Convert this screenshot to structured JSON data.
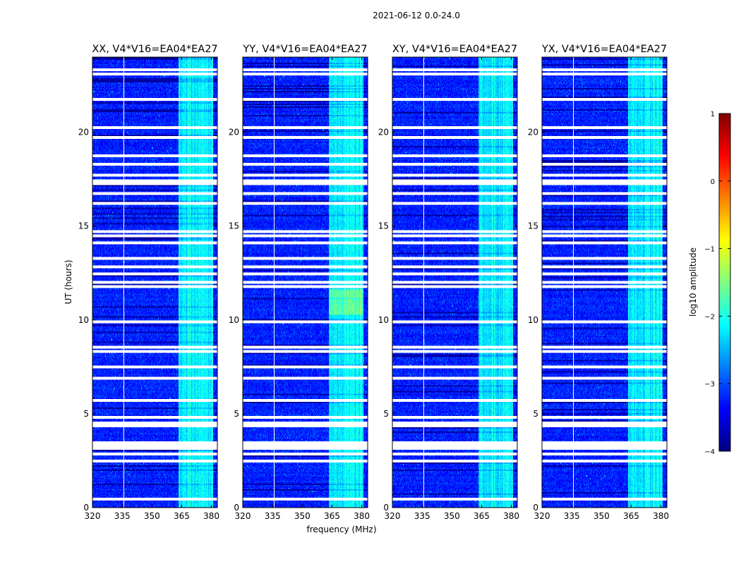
{
  "chart_data": {
    "type": "heatmap",
    "suptitle": "2021-06-12 0.0-24.0",
    "xlabel": "frequency (MHz)",
    "ylabel": "UT (hours)",
    "xlim": [
      320,
      383
    ],
    "ylim": [
      0,
      24
    ],
    "xticks": [
      320,
      335,
      350,
      365,
      380
    ],
    "yticks": [
      0,
      5,
      10,
      15,
      20
    ],
    "panels": [
      {
        "title": "XX, V4*V16=EA04*EA27"
      },
      {
        "title": "YY, V4*V16=EA04*EA27"
      },
      {
        "title": "XY, V4*V16=EA04*EA27"
      },
      {
        "title": "YX, V4*V16=EA04*EA27"
      }
    ],
    "colorbar": {
      "label": "log10 amplitude",
      "range": [
        -4,
        1
      ],
      "ticks": [
        -4,
        -3,
        -2,
        -1,
        0,
        1
      ],
      "colormap": [
        "#00007f",
        "#0000ff",
        "#007fff",
        "#00ffff",
        "#7fff7f",
        "#ffff00",
        "#ff7f00",
        "#ff0000",
        "#7f0000"
      ]
    },
    "background_level": -3.3,
    "bright_band": {
      "freq_range": [
        363.5,
        381
      ],
      "level": -2.3
    },
    "flagged_times": [
      0.5,
      2.55,
      2.95,
      3.2,
      3.4,
      3.55,
      4.45,
      4.6,
      4.85,
      5.75,
      7.0,
      7.6,
      8.4,
      8.6,
      10.0,
      11.85,
      12.1,
      12.5,
      12.9,
      13.35,
      14.2,
      14.55,
      14.75,
      16.3,
      16.8,
      17.3,
      17.5,
      17.8,
      18.35,
      18.8,
      19.8,
      20.3,
      21.85,
      23.2,
      23.4
    ],
    "flagged_freqs": [
      335.5
    ]
  }
}
